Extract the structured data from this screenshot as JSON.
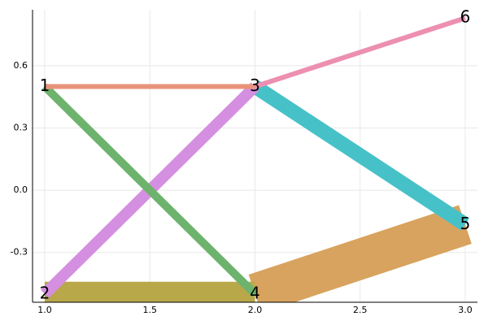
{
  "chart_data": {
    "type": "line",
    "xlim": [
      0.942,
      3.058
    ],
    "ylim": [
      -0.54,
      0.87
    ],
    "xticks": [
      {
        "value": 1.0,
        "label": "1.0"
      },
      1.5,
      {
        "value": 2.0,
        "label": "2.0"
      },
      2.5,
      {
        "value": 3.0,
        "label": "3.0"
      }
    ],
    "yticks": [
      -0.3,
      {
        "value": 0.0,
        "label": "0.0"
      },
      0.3,
      0.6
    ],
    "grid": true,
    "series": [
      {
        "color": "#d8a35e",
        "width": 50,
        "x": [
          2.0,
          3.0
        ],
        "values": [
          -0.5,
          -0.165
        ]
      },
      {
        "color": "#b8a84a",
        "width": 30,
        "x": [
          1.0,
          2.0
        ],
        "values": [
          -0.5,
          -0.5
        ]
      },
      {
        "color": "#47c1c8",
        "width": 18,
        "x": [
          2.0,
          3.0
        ],
        "values": [
          0.5,
          -0.165
        ]
      },
      {
        "color": "#d58fe0",
        "width": 14,
        "x": [
          1.0,
          2.0
        ],
        "values": [
          -0.5,
          0.5
        ]
      },
      {
        "color": "#6db36d",
        "width": 10,
        "x": [
          1.0,
          2.0
        ],
        "values": [
          0.5,
          -0.5
        ]
      },
      {
        "color": "#e8937a",
        "width": 6,
        "x": [
          1.0,
          2.0
        ],
        "values": [
          0.5,
          0.5
        ]
      },
      {
        "color": "#ec8fb0",
        "width": 6,
        "x": [
          2.0,
          3.0
        ],
        "values": [
          0.5,
          0.83
        ]
      }
    ],
    "annotations": [
      {
        "text": "1",
        "x": 1.0,
        "y": 0.5
      },
      {
        "text": "2",
        "x": 1.0,
        "y": -0.5
      },
      {
        "text": "3",
        "x": 2.0,
        "y": 0.5
      },
      {
        "text": "4",
        "x": 2.0,
        "y": -0.5
      },
      {
        "text": "5",
        "x": 3.0,
        "y": -0.165
      },
      {
        "text": "6",
        "x": 3.0,
        "y": 0.83
      }
    ]
  }
}
